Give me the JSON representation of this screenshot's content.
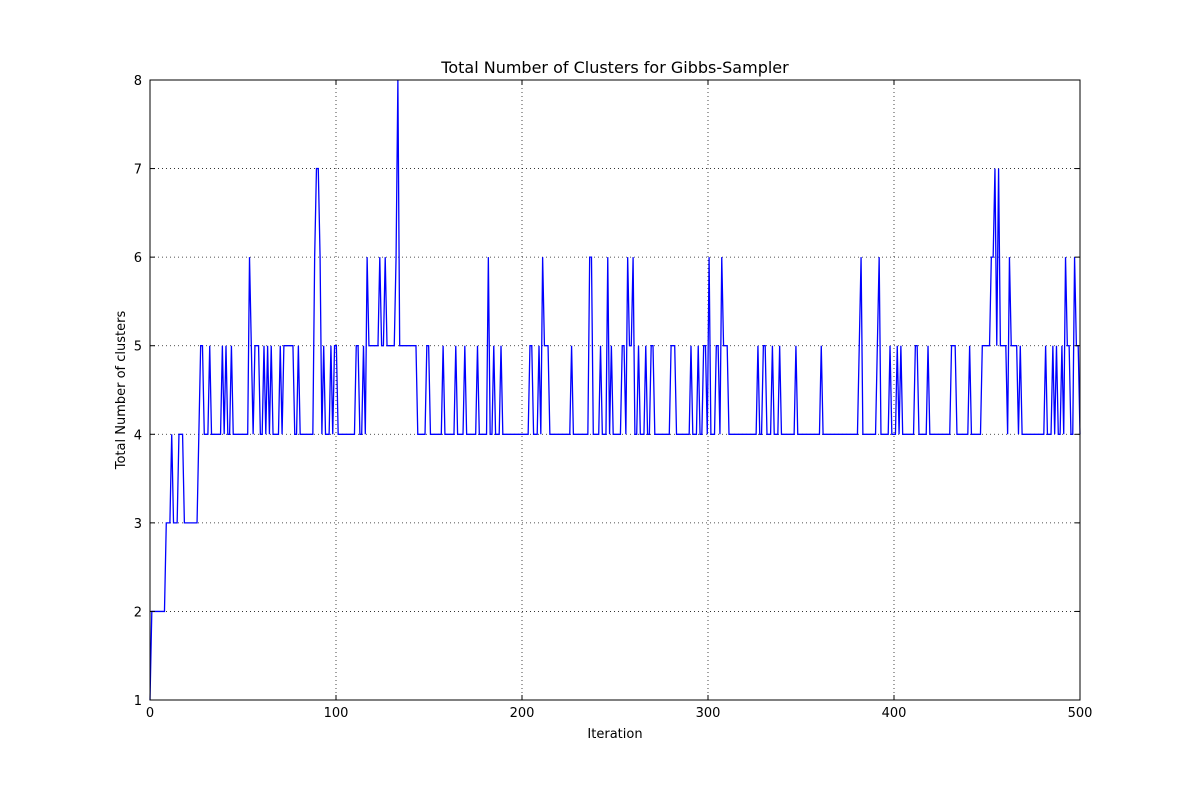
{
  "chart_data": {
    "type": "line",
    "title": "Total Number of Clusters for Gibbs-Sampler",
    "xlabel": "Iteration",
    "ylabel": "Total Number of clusters",
    "xlim": [
      0,
      500
    ],
    "ylim": [
      1,
      8
    ],
    "xticks": [
      0,
      100,
      200,
      300,
      400,
      500
    ],
    "yticks": [
      1,
      2,
      3,
      4,
      5,
      6,
      7,
      8
    ],
    "grid": true,
    "legend": "none",
    "colors": {
      "series": "#0000ff"
    },
    "series": [
      {
        "values": [
          1,
          2,
          2,
          2,
          2,
          2,
          2,
          2,
          2,
          3,
          3,
          3,
          4,
          3,
          3,
          3,
          4,
          4,
          4,
          3,
          3,
          3,
          3,
          3,
          3,
          3,
          3,
          4,
          5,
          5,
          4,
          4,
          4,
          5,
          4,
          4,
          4,
          4,
          4,
          4,
          5,
          4,
          5,
          4,
          4,
          5,
          4,
          4,
          4,
          4,
          4,
          4,
          4,
          4,
          4,
          6,
          5,
          4,
          5,
          5,
          5,
          4,
          4,
          5,
          4,
          5,
          4,
          5,
          4,
          4,
          4,
          4,
          5,
          4,
          5,
          5,
          5,
          5,
          5,
          5,
          4,
          4,
          5,
          4,
          4,
          4,
          4,
          4,
          4,
          4,
          4,
          6,
          7,
          7,
          6,
          4,
          5,
          4,
          4,
          4,
          5,
          4,
          5,
          5,
          4,
          4,
          4,
          4,
          4,
          4,
          4,
          4,
          4,
          4,
          5,
          5,
          4,
          4,
          5,
          4,
          6,
          5,
          5,
          5,
          5,
          5,
          5,
          6,
          5,
          5,
          6,
          5,
          5,
          5,
          5,
          5,
          6,
          8,
          5,
          5,
          5,
          5,
          5,
          5,
          5,
          5,
          5,
          5,
          4,
          4,
          4,
          4,
          4,
          5,
          5,
          4,
          4,
          4,
          4,
          4,
          4,
          4,
          5,
          4,
          4,
          4,
          4,
          4,
          4,
          5,
          4,
          4,
          4,
          4,
          5,
          4,
          4,
          4,
          4,
          4,
          4,
          5,
          4,
          4,
          4,
          4,
          4,
          6,
          4,
          4,
          5,
          4,
          4,
          4,
          5,
          4,
          4,
          4,
          4,
          4,
          4,
          4,
          4,
          4,
          4,
          4,
          4,
          4,
          4,
          4,
          5,
          5,
          4,
          4,
          4,
          5,
          4,
          6,
          5,
          5,
          5,
          4,
          4,
          4,
          4,
          4,
          4,
          4,
          4,
          4,
          4,
          4,
          4,
          5,
          4,
          4,
          4,
          4,
          4,
          4,
          4,
          4,
          4,
          6,
          6,
          4,
          4,
          4,
          4,
          5,
          4,
          4,
          4,
          6,
          4,
          5,
          4,
          4,
          4,
          4,
          4,
          5,
          5,
          4,
          6,
          5,
          5,
          6,
          4,
          4,
          5,
          4,
          4,
          4,
          5,
          4,
          4,
          5,
          5,
          4,
          4,
          4,
          4,
          4,
          4,
          4,
          4,
          4,
          5,
          5,
          5,
          4,
          4,
          4,
          4,
          4,
          4,
          4,
          4,
          5,
          4,
          4,
          4,
          5,
          4,
          4,
          5,
          5,
          4,
          6,
          4,
          4,
          4,
          5,
          5,
          4,
          6,
          5,
          5,
          5,
          4,
          4,
          4,
          4,
          4,
          4,
          4,
          4,
          4,
          4,
          4,
          4,
          4,
          4,
          4,
          4,
          5,
          4,
          4,
          5,
          5,
          4,
          4,
          4,
          5,
          4,
          4,
          4,
          5,
          4,
          4,
          4,
          4,
          4,
          4,
          4,
          4,
          5,
          4,
          4,
          4,
          4,
          4,
          4,
          4,
          4,
          4,
          4,
          4,
          4,
          4,
          5,
          4,
          4,
          4,
          4,
          4,
          4,
          4,
          4,
          4,
          4,
          4,
          4,
          4,
          4,
          4,
          4,
          4,
          4,
          4,
          4,
          5,
          6,
          4,
          4,
          4,
          4,
          4,
          4,
          4,
          4,
          5,
          6,
          4,
          4,
          4,
          4,
          4,
          5,
          4,
          4,
          4,
          5,
          4,
          5,
          4,
          4,
          4,
          4,
          4,
          4,
          4,
          5,
          5,
          4,
          4,
          4,
          4,
          4,
          5,
          4,
          4,
          4,
          4,
          4,
          4,
          4,
          4,
          4,
          4,
          4,
          4,
          5,
          5,
          5,
          4,
          4,
          4,
          4,
          4,
          4,
          4,
          5,
          4,
          4,
          4,
          4,
          4,
          4,
          5,
          5,
          5,
          5,
          5,
          6,
          6,
          7,
          5,
          7,
          5,
          5,
          5,
          5,
          4,
          6,
          5,
          5,
          5,
          5,
          4,
          5,
          4,
          4,
          4,
          4,
          4,
          4,
          4,
          4,
          4,
          4,
          4,
          4,
          4,
          5,
          4,
          4,
          4,
          5,
          4,
          5,
          4,
          4,
          5,
          4,
          6,
          5,
          5,
          4,
          4,
          6,
          5,
          5,
          4
        ]
      }
    ]
  }
}
